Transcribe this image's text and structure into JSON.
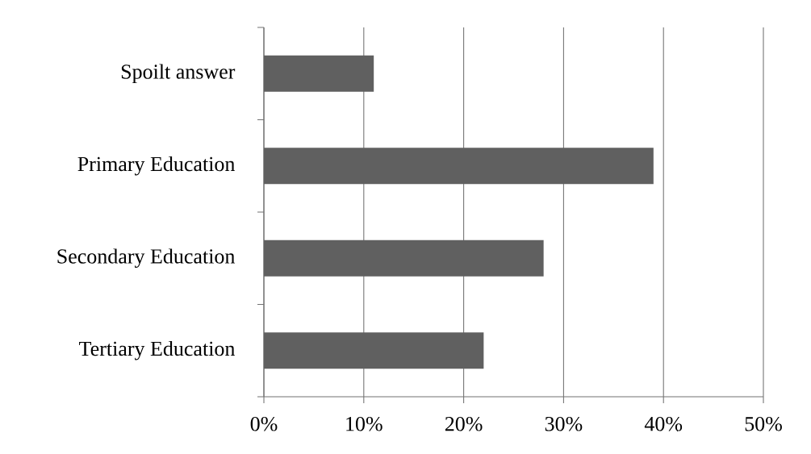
{
  "chart_data": {
    "type": "bar",
    "orientation": "horizontal",
    "categories": [
      "Spoilt answer",
      "Primary Education",
      "Secondary Education",
      "Tertiary Education"
    ],
    "values": [
      11,
      39,
      28,
      22
    ],
    "color": "#606060",
    "xlim": [
      0,
      50
    ],
    "xticks": [
      {
        "value": 0,
        "label": "0%"
      },
      {
        "value": 10,
        "label": "10%"
      },
      {
        "value": 20,
        "label": "20%"
      },
      {
        "value": 30,
        "label": "30%"
      },
      {
        "value": 40,
        "label": "40%"
      },
      {
        "value": 50,
        "label": "50%"
      }
    ],
    "grid": "x"
  }
}
